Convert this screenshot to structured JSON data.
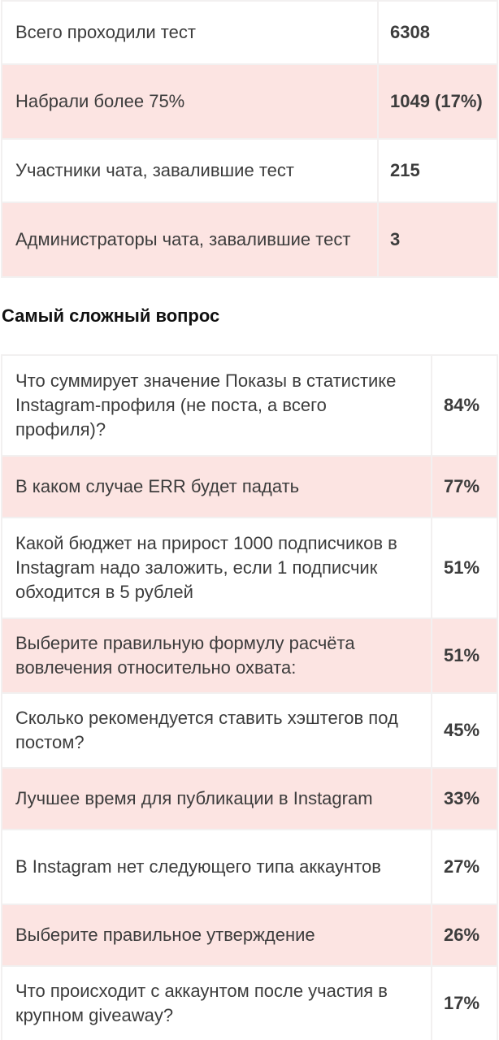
{
  "stats": {
    "rows": [
      {
        "label": "Всего проходили тест",
        "value": "6308"
      },
      {
        "label": "Набрали более 75%",
        "value": "1049 (17%)"
      },
      {
        "label": "Участники чата, завалившие тест",
        "value": "215"
      },
      {
        "label": "Администраторы чата, завалившие тест",
        "value": "3"
      }
    ]
  },
  "hardest": {
    "title": "Самый сложный вопрос",
    "rows": [
      {
        "question": "Что суммирует значение Показы в статистике Instagram-профиля (не поста, а всего профиля)?",
        "value": "84%"
      },
      {
        "question": "В каком случае ERR будет падать",
        "value": "77%"
      },
      {
        "question": "Какой бюджет на прирост 1000 подписчиков в Instagram надо заложить, если 1 подписчик обходится в 5 рублей",
        "value": "51%"
      },
      {
        "question": "Выберите правильную формулу расчёта вовлечения относительно охвата:",
        "value": "51%"
      },
      {
        "question": "Сколько рекомендуется ставить хэштегов под постом?",
        "value": "45%"
      },
      {
        "question": "Лучшее время для публикации в Instagram",
        "value": "33%"
      },
      {
        "question": "В Instagram нет следующего типа аккаунтов",
        "value": "27%"
      },
      {
        "question": "Выберите правильное утверждение",
        "value": "26%"
      },
      {
        "question": "Что происходит с аккаунтом после участия в крупном giveaway?",
        "value": "17%"
      }
    ]
  }
}
